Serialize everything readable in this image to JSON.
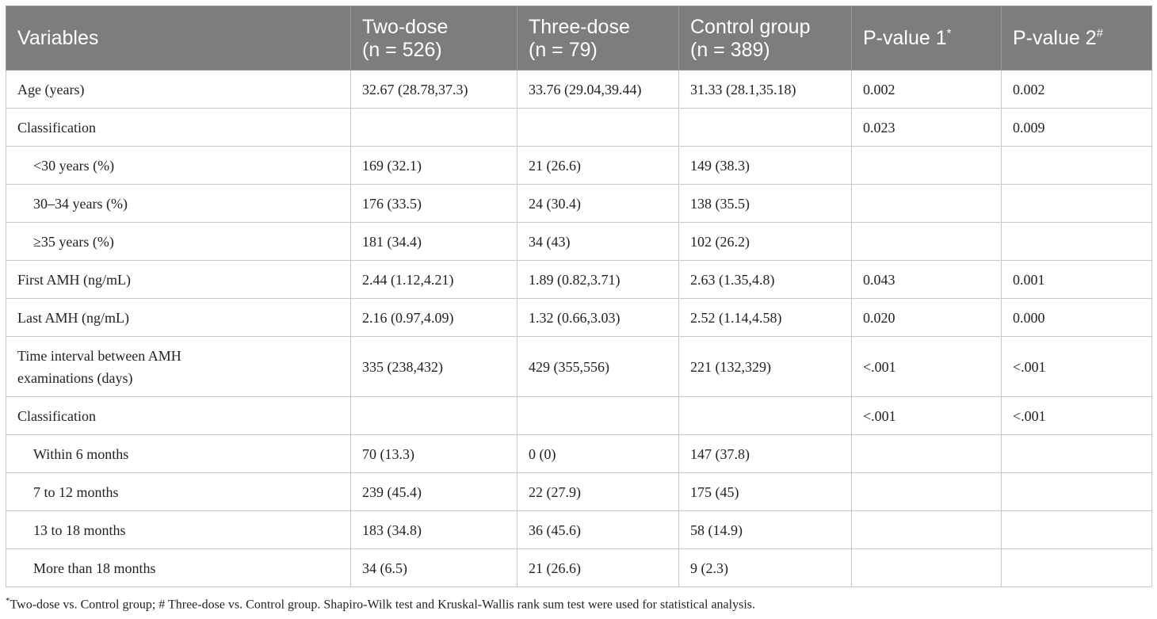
{
  "header": {
    "variables": "Variables",
    "two_dose": "Two-dose",
    "two_dose_n": "(n = 526)",
    "three_dose": "Three-dose",
    "three_dose_n": "(n = 79)",
    "control": "Control group",
    "control_n": "(n = 389)",
    "pvalue1": "P-value 1",
    "pvalue1_mark": "*",
    "pvalue2": "P-value 2",
    "pvalue2_mark": "#"
  },
  "rows": [
    {
      "label": "Age (years)",
      "two_dose": "32.67 (28.78,37.3)",
      "three_dose": "33.76 (29.04,39.44)",
      "control": "31.33 (28.1,35.18)",
      "p1": "0.002",
      "p2": "0.002"
    },
    {
      "label": "Classification",
      "two_dose": "",
      "three_dose": "",
      "control": "",
      "p1": "0.023",
      "p2": "0.009"
    },
    {
      "label": "<30 years (%)",
      "two_dose": "169 (32.1)",
      "three_dose": "21 (26.6)",
      "control": "149 (38.3)",
      "p1": "",
      "p2": ""
    },
    {
      "label": "30–34 years (%)",
      "two_dose": "176 (33.5)",
      "three_dose": "24 (30.4)",
      "control": "138 (35.5)",
      "p1": "",
      "p2": ""
    },
    {
      "label": "≥35 years (%)",
      "two_dose": "181 (34.4)",
      "three_dose": "34 (43)",
      "control": "102 (26.2)",
      "p1": "",
      "p2": ""
    },
    {
      "label": "First AMH (ng/mL)",
      "two_dose": "2.44 (1.12,4.21)",
      "three_dose": "1.89 (0.82,3.71)",
      "control": "2.63 (1.35,4.8)",
      "p1": "0.043",
      "p2": "0.001"
    },
    {
      "label": "Last AMH (ng/mL)",
      "two_dose": "2.16 (0.97,4.09)",
      "three_dose": "1.32 (0.66,3.03)",
      "control": "2.52 (1.14,4.58)",
      "p1": "0.020",
      "p2": "0.000"
    },
    {
      "label_line1": "Time interval between AMH",
      "label_line2": "examinations (days)",
      "two_dose": "335 (238,432)",
      "three_dose": "429 (355,556)",
      "control": "221 (132,329)",
      "p1": "<.001",
      "p2": "<.001"
    },
    {
      "label": "Classification",
      "two_dose": "",
      "three_dose": "",
      "control": "",
      "p1": "<.001",
      "p2": "<.001"
    },
    {
      "label": "Within 6 months",
      "two_dose": "70 (13.3)",
      "three_dose": "0 (0)",
      "control": "147 (37.8)",
      "p1": "",
      "p2": ""
    },
    {
      "label": "7 to 12 months",
      "two_dose": "239 (45.4)",
      "three_dose": "22 (27.9)",
      "control": "175 (45)",
      "p1": "",
      "p2": ""
    },
    {
      "label": "13 to 18 months",
      "two_dose": "183 (34.8)",
      "three_dose": "36 (45.6)",
      "control": "58 (14.9)",
      "p1": "",
      "p2": ""
    },
    {
      "label": "More than 18 months",
      "two_dose": "34 (6.5)",
      "three_dose": "21 (26.6)",
      "control": "9 (2.3)",
      "p1": "",
      "p2": ""
    }
  ],
  "footnote": {
    "mark": "*",
    "text": "Two-dose vs. Control group; # Three-dose vs. Control group. Shapiro-Wilk test and Kruskal-Wallis rank sum test were used for statistical analysis."
  }
}
